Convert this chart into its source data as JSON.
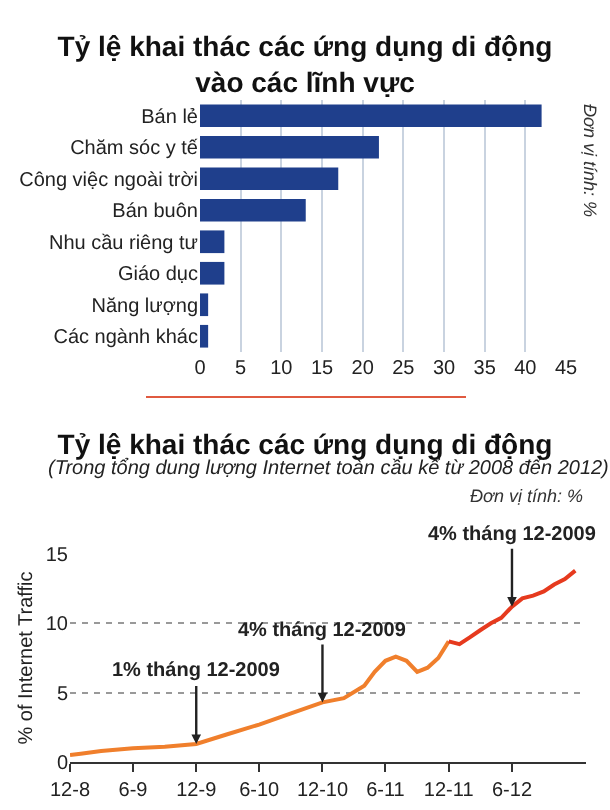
{
  "chart_data": [
    {
      "type": "bar",
      "title": "Tỷ lệ khai thác các ứng dụng di động vào các lĩnh vực",
      "orientation": "horizontal",
      "categories": [
        "Bán lẻ",
        "Chăm sóc y tế",
        "Công việc ngoài trời",
        "Bán buôn",
        "Nhu cầu riêng tư",
        "Giáo dục",
        "Năng lượng",
        "Các ngành khác"
      ],
      "values": [
        42,
        22,
        17,
        13,
        3,
        3,
        1,
        1
      ],
      "color": "#1f3f8c",
      "xlim": [
        0,
        45
      ],
      "xticks": [
        0,
        5,
        10,
        15,
        20,
        25,
        30,
        35,
        40,
        45
      ],
      "grid": "x",
      "annotations": [
        "Đơn vị tính: %"
      ]
    },
    {
      "type": "line",
      "title": "Tỷ lệ khai thác các ứng dụng di động",
      "subtitle": "(Trong tổng dung lượng Internet toàn cầu kể từ 2008 đến 2012)",
      "ylabel": "% of Internet Traffic",
      "series": [
        {
          "color": "#f07f2c",
          "x": [
            "2008-12",
            "2009-01",
            "2009-03",
            "2009-06",
            "2009-09",
            "2009-12",
            "2010-03",
            "2010-06",
            "2010-09",
            "2010-12",
            "2011-02",
            "2011-04",
            "2011-05",
            "2011-06",
            "2011-07",
            "2011-08",
            "2011-09",
            "2011-10",
            "2011-11",
            "2011-12"
          ],
          "values": [
            0.5,
            0.6,
            0.8,
            1.0,
            1.1,
            1.3,
            2.0,
            2.7,
            3.5,
            4.3,
            4.6,
            5.5,
            6.5,
            7.3,
            7.6,
            7.3,
            6.5,
            6.8,
            7.5,
            8.7
          ]
        },
        {
          "color": "#e63a1e",
          "x": [
            "2011-12",
            "2012-01",
            "2012-02",
            "2012-03",
            "2012-04",
            "2012-05",
            "2012-06",
            "2012-07",
            "2012-08",
            "2012-09",
            "2012-10",
            "2012-11",
            "2012-12"
          ],
          "values": [
            8.7,
            8.5,
            9.0,
            9.5,
            10.0,
            10.4,
            11.2,
            11.8,
            12.0,
            12.3,
            12.8,
            13.2,
            13.8
          ]
        }
      ],
      "xlim": [
        "2008-12",
        "2013-01"
      ],
      "xticks": [
        {
          "value": "2008-12",
          "label": "12-8"
        },
        {
          "value": "2009-06",
          "label": "6-9"
        },
        {
          "value": "2009-12",
          "label": "12-9"
        },
        {
          "value": "2010-06",
          "label": "6-10"
        },
        {
          "value": "2010-12",
          "label": "12-10"
        },
        {
          "value": "2011-06",
          "label": "6-11"
        },
        {
          "value": "2011-12",
          "label": "12-11"
        },
        {
          "value": "2012-06",
          "label": "6-12"
        }
      ],
      "ylim": [
        0,
        15
      ],
      "yticks": [
        0,
        5,
        10,
        15
      ],
      "grid": "y",
      "annotations": [
        "Đơn vị tính: %",
        {
          "text": "1% tháng 12-2009",
          "x": "2009-12",
          "y": 1.3
        },
        {
          "text": "4% tháng 12-2009",
          "x": "2010-12",
          "y": 4.3
        },
        {
          "text": "4% tháng 12-2009",
          "x": "2012-06",
          "y": 11.2
        }
      ]
    }
  ]
}
